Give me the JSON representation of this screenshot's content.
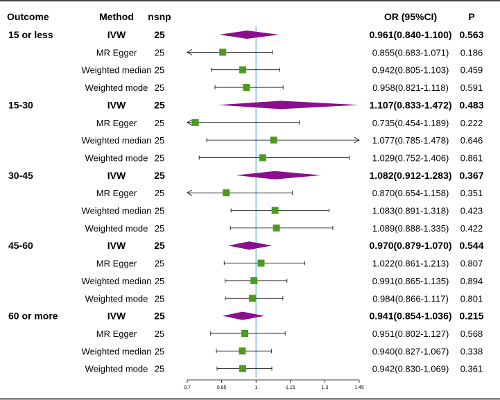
{
  "chart_data": {
    "type": "forest",
    "headers": {
      "outcome": "Outcome",
      "method": "Method",
      "nsnp": "nsnp",
      "or": "OR (95%CI)",
      "p": "P"
    },
    "x_ticks": [
      0.7,
      0.85,
      1,
      1.15,
      1.3,
      1.45
    ],
    "x_tick_labels": [
      "0.7",
      "0.85",
      "1",
      "1.15",
      "1.3",
      "1.45"
    ],
    "xlim": [
      0.7,
      1.45
    ],
    "reference_line": 1,
    "colors": {
      "diamond": "#8B0F8C",
      "square": "#4C9A1E",
      "ref": "#7FC8D8"
    },
    "groups": [
      {
        "outcome": "15 or less",
        "rows": [
          {
            "method": "IVW",
            "nsnp": "25",
            "or_text": "0.961(0.840-1.100)",
            "p": "0.563",
            "est": 0.961,
            "lo": 0.84,
            "hi": 1.1
          },
          {
            "method": "MR Egger",
            "nsnp": "25",
            "or_text": "0.855(0.683-1.071)",
            "p": "0.186",
            "est": 0.855,
            "lo": 0.683,
            "hi": 1.071
          },
          {
            "method": "Weighted median",
            "nsnp": "25",
            "or_text": "0.942(0.805-1.103)",
            "p": "0.459",
            "est": 0.942,
            "lo": 0.805,
            "hi": 1.103
          },
          {
            "method": "Weighted mode",
            "nsnp": "25",
            "or_text": "0.958(0.821-1.118)",
            "p": "0.591",
            "est": 0.958,
            "lo": 0.821,
            "hi": 1.118
          }
        ]
      },
      {
        "outcome": "15-30",
        "rows": [
          {
            "method": "IVW",
            "nsnp": "25",
            "or_text": "1.107(0.833-1.472)",
            "p": "0.483",
            "est": 1.107,
            "lo": 0.833,
            "hi": 1.472
          },
          {
            "method": "MR Egger",
            "nsnp": "25",
            "or_text": "0.735(0.454-1.189)",
            "p": "0.222",
            "est": 0.735,
            "lo": 0.454,
            "hi": 1.189
          },
          {
            "method": "Weighted median",
            "nsnp": "25",
            "or_text": "1.077(0.785-1.478)",
            "p": "0.646",
            "est": 1.077,
            "lo": 0.785,
            "hi": 1.478
          },
          {
            "method": "Weighted mode",
            "nsnp": "25",
            "or_text": "1.029(0.752-1.406)",
            "p": "0.861",
            "est": 1.029,
            "lo": 0.752,
            "hi": 1.406
          }
        ]
      },
      {
        "outcome": "30-45",
        "rows": [
          {
            "method": "IVW",
            "nsnp": "25",
            "or_text": "1.082(0.912-1.283)",
            "p": "0.367",
            "est": 1.082,
            "lo": 0.912,
            "hi": 1.283
          },
          {
            "method": "MR Egger",
            "nsnp": "25",
            "or_text": "0.870(0.654-1.158)",
            "p": "0.351",
            "est": 0.87,
            "lo": 0.654,
            "hi": 1.158
          },
          {
            "method": "Weighted median",
            "nsnp": "25",
            "or_text": "1.083(0.891-1.318)",
            "p": "0.423",
            "est": 1.083,
            "lo": 0.891,
            "hi": 1.318
          },
          {
            "method": "Weighted mode",
            "nsnp": "25",
            "or_text": "1.089(0.888-1.335)",
            "p": "0.422",
            "est": 1.089,
            "lo": 0.888,
            "hi": 1.335
          }
        ]
      },
      {
        "outcome": "45-60",
        "rows": [
          {
            "method": "IVW",
            "nsnp": "25",
            "or_text": "0.970(0.879-1.070)",
            "p": "0.544",
            "est": 0.97,
            "lo": 0.879,
            "hi": 1.07
          },
          {
            "method": "MR Egger",
            "nsnp": "25",
            "or_text": "1.022(0.861-1.213)",
            "p": "0.807",
            "est": 1.022,
            "lo": 0.861,
            "hi": 1.213
          },
          {
            "method": "Weighted median",
            "nsnp": "25",
            "or_text": "0.991(0.865-1.135)",
            "p": "0.894",
            "est": 0.991,
            "lo": 0.865,
            "hi": 1.135
          },
          {
            "method": "Weighted mode",
            "nsnp": "25",
            "or_text": "0.984(0.866-1.117)",
            "p": "0.801",
            "est": 0.984,
            "lo": 0.866,
            "hi": 1.117
          }
        ]
      },
      {
        "outcome": "60 or more",
        "rows": [
          {
            "method": "IVW",
            "nsnp": "25",
            "or_text": "0.941(0.854-1.036)",
            "p": "0.215",
            "est": 0.941,
            "lo": 0.854,
            "hi": 1.036
          },
          {
            "method": "MR Egger",
            "nsnp": "25",
            "or_text": "0.951(0.802-1.127)",
            "p": "0.568",
            "est": 0.951,
            "lo": 0.802,
            "hi": 1.127
          },
          {
            "method": "Weighted median",
            "nsnp": "25",
            "or_text": "0.940(0.827-1.067)",
            "p": "0.338",
            "est": 0.94,
            "lo": 0.827,
            "hi": 1.067
          },
          {
            "method": "Weighted mode",
            "nsnp": "25",
            "or_text": "0.942(0.830-1.069)",
            "p": "0.361",
            "est": 0.942,
            "lo": 0.83,
            "hi": 1.069
          }
        ]
      }
    ]
  }
}
